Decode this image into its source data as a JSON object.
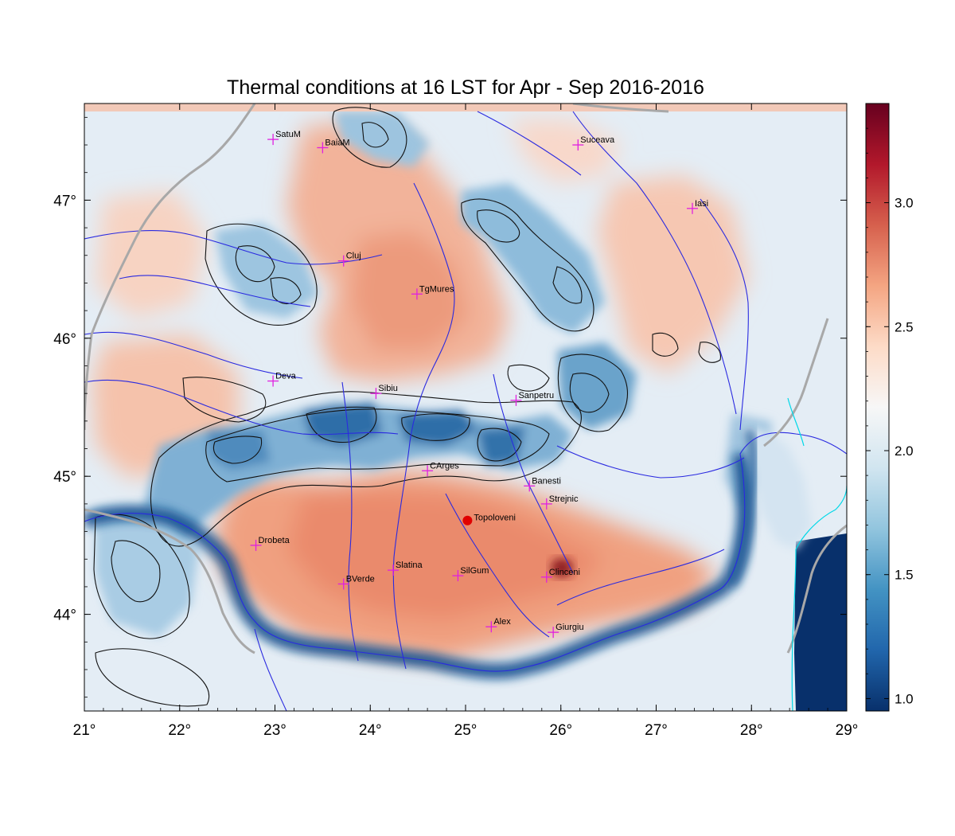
{
  "title": "Thermal conditions at 16 LST for Apr - Sep  2016-2016",
  "map": {
    "lon_range": [
      21,
      29
    ],
    "lat_range": [
      43.3,
      47.7
    ],
    "lon_ticks": [
      "21°",
      "22°",
      "23°",
      "24°",
      "25°",
      "26°",
      "27°",
      "28°",
      "29°"
    ],
    "lat_ticks": [
      "44°",
      "45°",
      "46°",
      "47°"
    ],
    "field_colormap": "diverging blue-white-red",
    "contours": "black terrain contours",
    "rivers_color": "#2a2ae0",
    "borders_color": "#a8a8a8",
    "coast_color": "#00d8e8"
  },
  "colorbar": {
    "range": [
      0.95,
      3.4
    ],
    "ticks": [
      "1.0",
      "1.5",
      "2.0",
      "2.5",
      "3.0"
    ],
    "colors": [
      "#08306b",
      "#2166ac",
      "#4393c3",
      "#92c5de",
      "#d1e5f0",
      "#f7f7f7",
      "#fddbc7",
      "#f4a582",
      "#d6604d",
      "#b2182b",
      "#67001f"
    ]
  },
  "stations": [
    {
      "name": "SatuM",
      "lon": 22.98,
      "lat": 47.44
    },
    {
      "name": "BaiaM",
      "lon": 23.5,
      "lat": 47.38
    },
    {
      "name": "Suceava",
      "lon": 26.18,
      "lat": 47.4
    },
    {
      "name": "Iasi",
      "lon": 27.38,
      "lat": 46.94
    },
    {
      "name": "Cluj",
      "lon": 23.72,
      "lat": 46.56
    },
    {
      "name": "TgMures",
      "lon": 24.49,
      "lat": 46.32
    },
    {
      "name": "Deva",
      "lon": 22.98,
      "lat": 45.69
    },
    {
      "name": "Sibiu",
      "lon": 24.06,
      "lat": 45.6
    },
    {
      "name": "Sanpetru",
      "lon": 25.53,
      "lat": 45.55
    },
    {
      "name": "CArges",
      "lon": 24.6,
      "lat": 45.04
    },
    {
      "name": "Banesti",
      "lon": 25.67,
      "lat": 44.93
    },
    {
      "name": "Strejnic",
      "lon": 25.85,
      "lat": 44.8
    },
    {
      "name": "Drobeta",
      "lon": 22.8,
      "lat": 44.5
    },
    {
      "name": "Slatina",
      "lon": 24.24,
      "lat": 44.32
    },
    {
      "name": "SilGum",
      "lon": 24.92,
      "lat": 44.28
    },
    {
      "name": "Clinceni",
      "lon": 25.85,
      "lat": 44.27
    },
    {
      "name": "BVerde",
      "lon": 23.72,
      "lat": 44.22
    },
    {
      "name": "Alex",
      "lon": 25.27,
      "lat": 43.91
    },
    {
      "name": "Giurgiu",
      "lon": 25.92,
      "lat": 43.87
    }
  ],
  "highlight": {
    "name": "Topoloveni",
    "lon": 25.02,
    "lat": 44.68,
    "color": "#e00000"
  }
}
